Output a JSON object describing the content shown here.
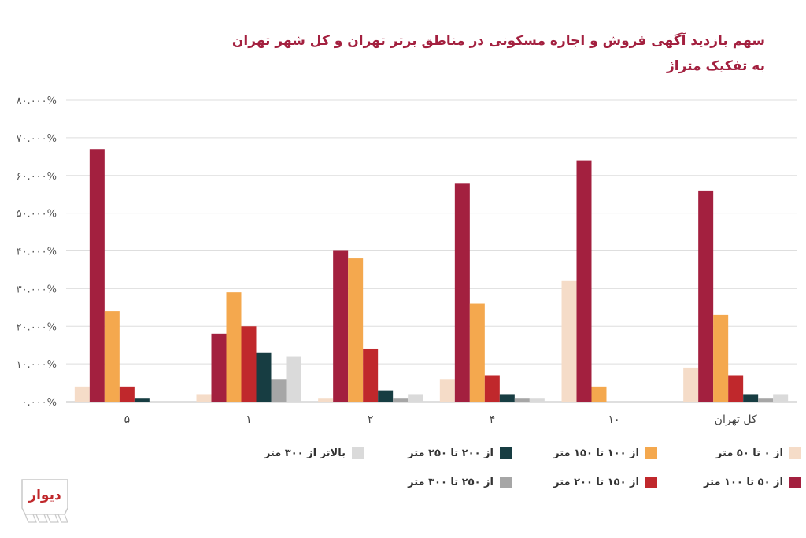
{
  "title": {
    "line1": "سهم بازدید آگهی فروش و اجاره مسکونی در مناطق برتر تهران و کل شهر تهران",
    "line2": "به تفکیک متراژ"
  },
  "logo_text": "دیوار",
  "chart_data": {
    "type": "bar",
    "title": "سهم بازدید آگهی فروش و اجاره مسکونی در مناطق برتر تهران و کل شهر تهران به تفکیک متراژ",
    "categories": [
      "۵",
      "۱",
      "۲",
      "۴",
      "۱۰",
      "کل تهران"
    ],
    "ylim": [
      0,
      80
    ],
    "y_ticks": [
      0,
      10,
      20,
      30,
      40,
      50,
      60,
      70,
      80
    ],
    "y_tick_labels": [
      "۰.۰۰۰%",
      "۱۰.۰۰۰%",
      "۲۰.۰۰۰%",
      "۳۰.۰۰۰%",
      "۴۰.۰۰۰%",
      "۵۰.۰۰۰%",
      "۶۰.۰۰۰%",
      "۷۰.۰۰۰%",
      "۸۰.۰۰۰%"
    ],
    "grid": true,
    "legend_position": "bottom",
    "series": [
      {
        "name": "از ۰ تا ۵۰ متر",
        "color": "#f5dcc8",
        "values": [
          4,
          2,
          1,
          6,
          32,
          9
        ]
      },
      {
        "name": "از ۵۰ تا ۱۰۰ متر",
        "color": "#a3203f",
        "values": [
          67,
          18,
          40,
          58,
          64,
          56
        ]
      },
      {
        "name": "از ۱۰۰ تا ۱۵۰ متر",
        "color": "#f4a84e",
        "values": [
          24,
          29,
          38,
          26,
          4,
          23
        ]
      },
      {
        "name": "از ۱۵۰ تا ۲۰۰ متر",
        "color": "#c0282c",
        "values": [
          4,
          20,
          14,
          7,
          0,
          7
        ]
      },
      {
        "name": "از ۲۰۰ تا ۲۵۰ متر",
        "color": "#173d42",
        "values": [
          1,
          13,
          3,
          2,
          0,
          2
        ]
      },
      {
        "name": "از ۲۵۰ تا ۳۰۰ متر",
        "color": "#a6a6a6",
        "values": [
          0,
          6,
          1,
          1,
          0,
          1
        ]
      },
      {
        "name": "بالاتر از ۳۰۰ متر",
        "color": "#dadada",
        "values": [
          0,
          12,
          2,
          1,
          0,
          2
        ]
      }
    ]
  }
}
